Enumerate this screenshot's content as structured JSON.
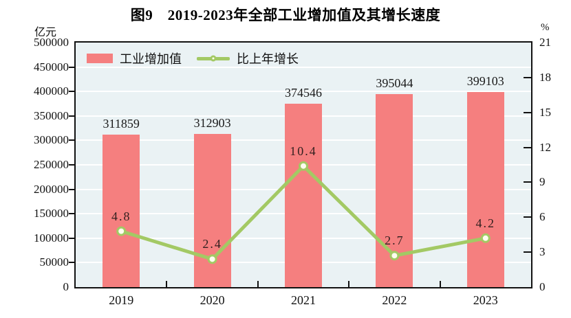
{
  "figure": {
    "title": "图9　2019-2023年全部工业增加值及其增长速度"
  },
  "chart_data": {
    "type": "bar+line",
    "title": "图9　2019-2023年全部工业增加值及其增长速度",
    "categories": [
      "2019",
      "2020",
      "2021",
      "2022",
      "2023"
    ],
    "series": [
      {
        "name": "工业增加值",
        "type": "bar",
        "axis": "left",
        "color": "#f57f7f",
        "values": [
          311859,
          312903,
          374546,
          395044,
          399103
        ],
        "labels": [
          "311859",
          "312903",
          "374546",
          "395044",
          "399103"
        ]
      },
      {
        "name": "比上年增长",
        "type": "line",
        "axis": "right",
        "color": "#a3c964",
        "marker_fill": "#fffdf0",
        "values": [
          4.8,
          2.4,
          10.4,
          2.7,
          4.2
        ],
        "labels": [
          "4.8",
          "2.4",
          "10.4",
          "2.7",
          "4.2"
        ]
      }
    ],
    "left_axis": {
      "unit": "亿元",
      "min": 0,
      "max": 500000,
      "step": 50000,
      "ticks": [
        "0",
        "50000",
        "100000",
        "150000",
        "200000",
        "250000",
        "300000",
        "350000",
        "400000",
        "450000",
        "500000"
      ]
    },
    "right_axis": {
      "unit": "%",
      "min": 0,
      "max": 21,
      "step": 3,
      "ticks": [
        "0",
        "3",
        "6",
        "9",
        "12",
        "15",
        "18",
        "21"
      ]
    },
    "legend_position": "top-left-inside",
    "grid": true,
    "plot_bg": "#eaf2f4",
    "grid_color": "#ffffff",
    "axis_color": "#111111"
  }
}
